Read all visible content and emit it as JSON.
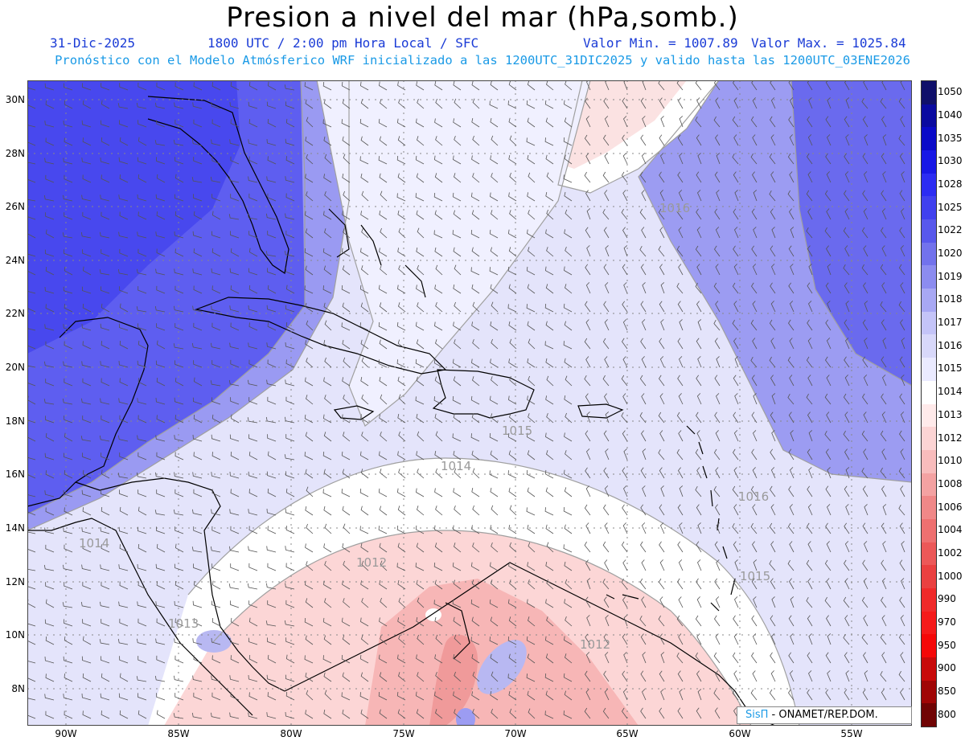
{
  "header": {
    "title": "Presion a nivel del mar (hPa,somb.)",
    "date": "31-Dic-2025",
    "time": "1800 UTC / 2:00 pm Hora Local / SFC",
    "min": "Valor Min. = 1007.89",
    "max": "Valor Max. = 1025.84",
    "forecast": "Pronóstico con el Modelo Atmósferico WRF inicializado a las 1200UTC_31DIC2025 y valido hasta las  1200UTC_03ENE2026"
  },
  "axes": {
    "lat_labels": [
      "30N",
      "28N",
      "26N",
      "24N",
      "22N",
      "20N",
      "18N",
      "16N",
      "14N",
      "12N",
      "10N",
      "8N"
    ],
    "lon_labels": [
      "90W",
      "85W",
      "80W",
      "75W",
      "70W",
      "65W",
      "60W",
      "55W"
    ]
  },
  "legend": {
    "levels": [
      "1050",
      "1040",
      "1035",
      "1030",
      "1028",
      "1025",
      "1022",
      "1020",
      "1019",
      "1018",
      "1017",
      "1016",
      "1015",
      "1014",
      "1013",
      "1012",
      "1010",
      "1008",
      "1006",
      "1004",
      "1002",
      "1000",
      "990",
      "970",
      "950",
      "900",
      "850",
      "800"
    ],
    "colors": [
      "#10106a",
      "#0a0aa0",
      "#0a0ac8",
      "#1818e6",
      "#2c2cf2",
      "#4040ee",
      "#5858ec",
      "#7272ec",
      "#8c8cf0",
      "#a8a8f4",
      "#c4c4f8",
      "#d8d8fa",
      "#eaeaff",
      "#ffffff",
      "#ffeaea",
      "#fcd4d4",
      "#f8bcbc",
      "#f4a2a2",
      "#f08888",
      "#ee7070",
      "#ec5858",
      "#ea4040",
      "#f02a2a",
      "#f51a1a",
      "#f50808",
      "#c80a0a",
      "#a00606",
      "#700404"
    ]
  },
  "contour_labels": [
    "1016",
    "1015",
    "1014",
    "1012",
    "1014",
    "1013",
    "1016",
    "1015",
    "1012"
  ],
  "credit": {
    "logo": "SisΠ",
    "text": " - ONAMET/REP.DOM."
  }
}
